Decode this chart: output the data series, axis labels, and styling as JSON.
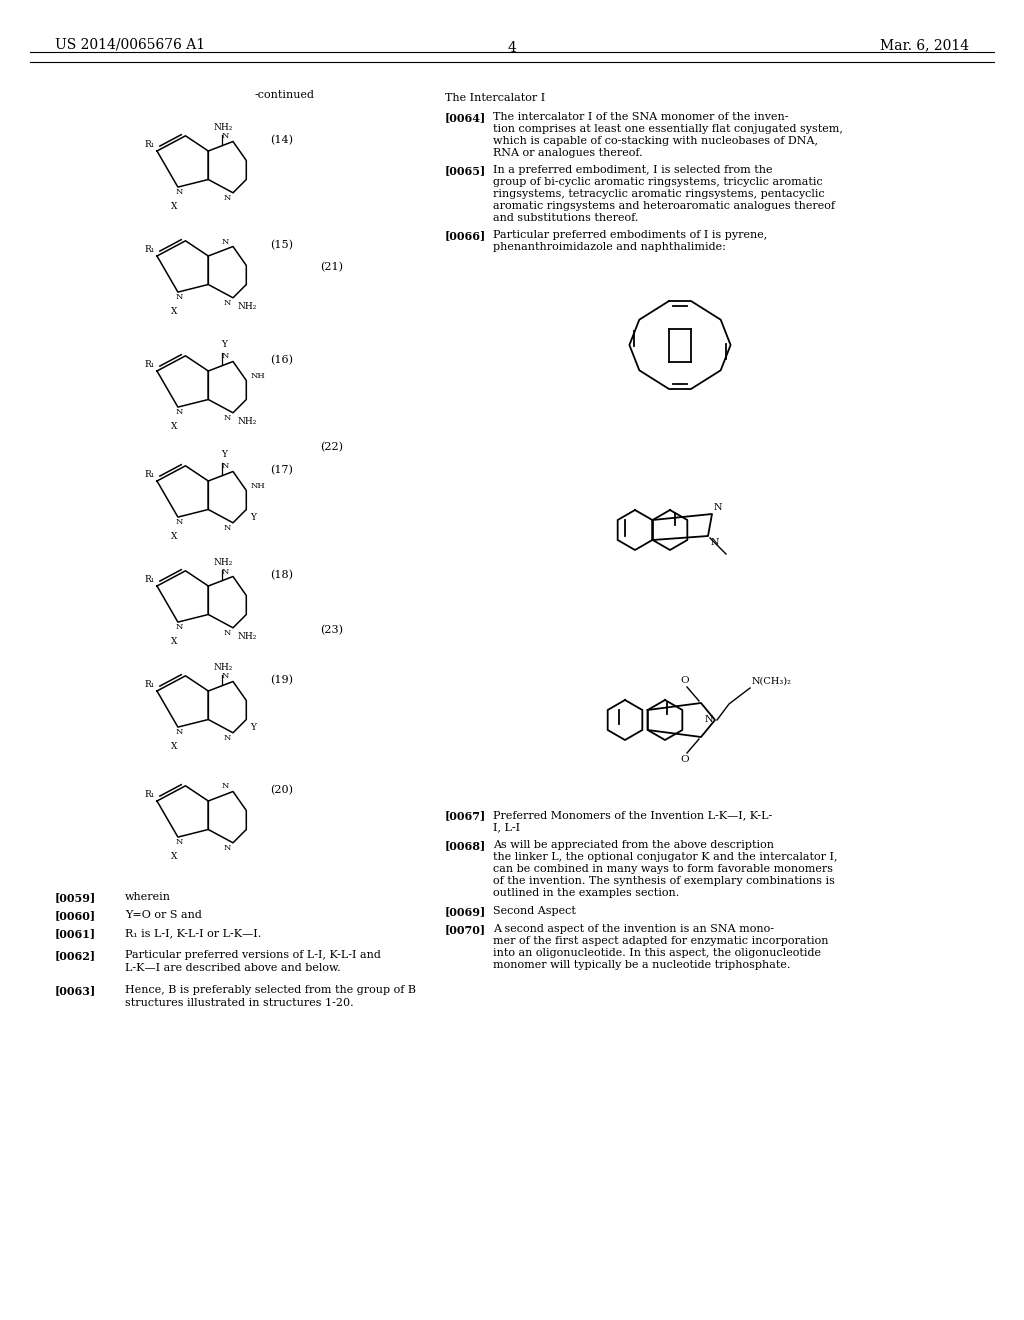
{
  "page_header_left": "US 2014/0065676 A1",
  "page_header_right": "Mar. 6, 2014",
  "page_number": "4",
  "continued_label": "-continued",
  "background_color": "#ffffff",
  "intercalator_title": "The Intercalator I",
  "para_0064_id": "[0064]",
  "para_0064": "The intercalator I of the SNA monomer of the inven-",
  "para_0064b": "tion comprises at least one essentially flat conjugated system,",
  "para_0064c": "which is capable of co-stacking with nucleobases of DNA,",
  "para_0064d": "RNA or analogues thereof.",
  "para_0065_id": "[0065]",
  "para_0065": "In a preferred embodiment, I is selected from the",
  "para_0065b": "group of bi-cyclic aromatic ringsystems, tricyclic aromatic",
  "para_0065c": "ringsystems, tetracyclic aromatic ringsystems, pentacyclic",
  "para_0065d": "aromatic ringsystems and heteroaromatic analogues thereof",
  "para_0065e": "and substitutions thereof.",
  "para_0066_id": "[0066]",
  "para_0066": "Particular preferred embodiments of I is pyrene,",
  "para_0066b": "phenanthroimidazole and naphthalimide:",
  "para_0067_id": "[0067]",
  "para_0067": "Preferred Monomers of the Invention L-K—I, K-L-",
  "para_0067b": "I, L-I",
  "para_0068_id": "[0068]",
  "para_0068": "As will be appreciated from the above description",
  "para_0068b": "the linker L, the optional conjugator K and the intercalator I,",
  "para_0068c": "can be combined in many ways to form favorable monomers",
  "para_0068d": "of the invention. The synthesis of exemplary combinations is",
  "para_0068e": "outlined in the examples section.",
  "para_0069_id": "[0069]",
  "para_0069": "Second Aspect",
  "para_0070_id": "[0070]",
  "para_0070": "A second aspect of the invention is an SNA mono-",
  "para_0070b": "mer of the first aspect adapted for enzymatic incorporation",
  "para_0070c": "into an oligonucleotide. In this aspect, the oligonucleotide",
  "para_0070d": "monomer will typically be a nucleotide triphosphate.",
  "para_0059_id": "[0059]",
  "para_0059": "wherein",
  "para_0060_id": "[0060]",
  "para_0060": "Y=O or S and",
  "para_0061_id": "[0061]",
  "para_0061": "R₁ is L-I, K-L-I or L-K—I.",
  "para_0062_id": "[0062]",
  "para_0062": "Particular preferred versions of L-I, K-L-I and",
  "para_0062b": "L-K—I are described above and below.",
  "para_0063_id": "[0063]",
  "para_0063": "Hence, B is preferably selected from the group of B",
  "para_0063b": "structures illustrated in structures 1-20.",
  "struct_num_14": "(14)",
  "struct_num_15": "(15)",
  "struct_num_16": "(16)",
  "struct_num_17": "(17)",
  "struct_num_18": "(18)",
  "struct_num_19": "(19)",
  "struct_num_20": "(20)",
  "struct_num_21": "(21)",
  "struct_num_22": "(22)",
  "struct_num_23": "(23)"
}
